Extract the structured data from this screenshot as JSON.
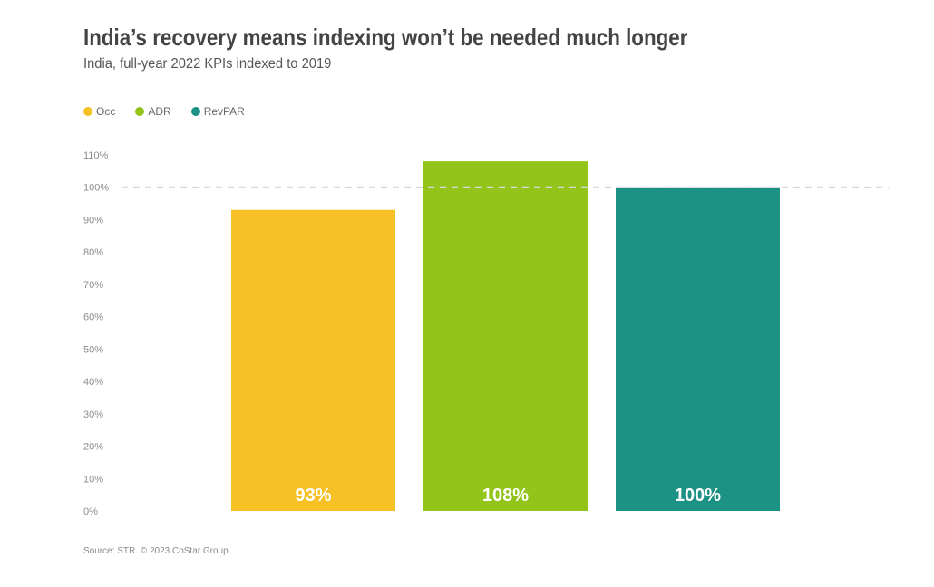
{
  "chart_data": {
    "type": "bar",
    "title": "India’s recovery means indexing won’t be needed much longer",
    "subtitle": "India, full-year 2022 KPIs indexed to 2019",
    "categories": [
      "Occ",
      "ADR",
      "RevPAR"
    ],
    "values": [
      93,
      108,
      100
    ],
    "data_labels": [
      "93%",
      "108%",
      "100%"
    ],
    "colors": [
      "#F7C025",
      "#92C41A",
      "#1C9284"
    ],
    "yticks": [
      "0%",
      "10%",
      "20%",
      "30%",
      "40%",
      "50%",
      "60%",
      "70%",
      "80%",
      "90%",
      "100%",
      "110%"
    ],
    "ylim": [
      0,
      110
    ],
    "reference_line": 100,
    "legend": [
      {
        "name": "Occ",
        "color": "#F7C025"
      },
      {
        "name": "ADR",
        "color": "#92C41A"
      },
      {
        "name": "RevPAR",
        "color": "#1C9284"
      }
    ],
    "legend_position": "top-left",
    "grid": false,
    "xlabel": "",
    "ylabel": ""
  },
  "source": "Source: STR. © 2023 CoStar Group"
}
